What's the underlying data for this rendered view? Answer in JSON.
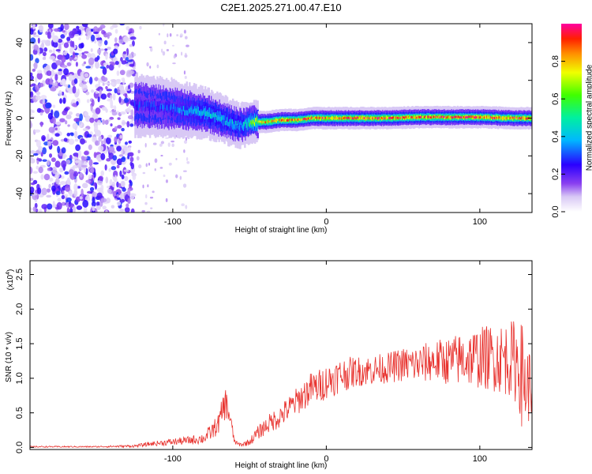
{
  "title": "C2E1.2025.271.00.47.E10",
  "chart_data": [
    {
      "type": "heatmap",
      "name": "spectrogram",
      "xlabel": "Height of straight line (km)",
      "ylabel": "Frequency (Hz)",
      "xlim": [
        -193,
        134
      ],
      "ylim": [
        -50,
        50
      ],
      "xticks": [
        -100,
        0,
        100
      ],
      "xtick_labels": [
        "-100",
        "0",
        "100"
      ],
      "yticks": [
        -40,
        -20,
        0,
        20,
        40
      ],
      "ytick_labels": [
        "-40",
        "-20",
        "0",
        "20",
        "40"
      ],
      "colorbar": {
        "label": "Normalized spectral amplitude",
        "range": [
          0,
          1
        ],
        "ticks": [
          0.0,
          0.2,
          0.4,
          0.6,
          0.8
        ],
        "tick_labels": [
          "0.0",
          "0.2",
          "0.4",
          "0.6",
          "0.8"
        ]
      },
      "ridge": {
        "x": [
          -125,
          -110,
          -100,
          -90,
          -80,
          -70,
          -60,
          -55,
          -50,
          -40,
          -30,
          -20,
          -10,
          0,
          20,
          40,
          60,
          80,
          100,
          120,
          134
        ],
        "frequency": [
          7,
          6,
          5,
          4,
          3,
          0,
          -3,
          -4,
          -2,
          -2,
          -1,
          -1,
          0,
          0,
          0,
          0,
          0.5,
          0.5,
          0.5,
          0,
          0
        ],
        "amplitude": [
          0.3,
          0.3,
          0.35,
          0.4,
          0.45,
          0.45,
          0.45,
          0.45,
          0.6,
          0.85,
          0.9,
          0.9,
          0.95,
          0.9,
          0.95,
          0.95,
          0.9,
          0.95,
          0.95,
          0.95,
          0.9
        ]
      },
      "noise_region": [
        -193,
        -125
      ]
    },
    {
      "type": "line",
      "name": "snr",
      "xlabel": "Height of straight line (km)",
      "ylabel": "SNR (10 * v/v)",
      "y_multiplier": "(x10",
      "y_multiplier_exp": "4",
      "y_multiplier_close": ")",
      "xlim": [
        -193,
        134
      ],
      "ylim": [
        -0.03,
        2.7
      ],
      "xticks": [
        -100,
        0,
        100
      ],
      "xtick_labels": [
        "-100",
        "0",
        "100"
      ],
      "yticks": [
        0.0,
        0.5,
        1.0,
        1.5,
        2.0,
        2.5
      ],
      "ytick_labels": [
        "0.0",
        "0.5",
        "1.0",
        "1.5",
        "2.0",
        "2.5"
      ],
      "series": [
        {
          "name": "SNR",
          "color": "#e8322e",
          "x": [
            -193,
            -150,
            -125,
            -115,
            -100,
            -90,
            -80,
            -75,
            -70,
            -68,
            -66,
            -64,
            -62,
            -60,
            -58,
            -55,
            -50,
            -45,
            -40,
            -35,
            -30,
            -25,
            -20,
            -15,
            -10,
            -5,
            0,
            5,
            10,
            20,
            30,
            40,
            50,
            60,
            70,
            80,
            90,
            100,
            110,
            120,
            125,
            128,
            130,
            134
          ],
          "y": [
            0.01,
            0.01,
            0.02,
            0.05,
            0.08,
            0.1,
            0.13,
            0.22,
            0.35,
            0.5,
            0.65,
            0.55,
            0.35,
            0.1,
            0.05,
            0.04,
            0.08,
            0.2,
            0.3,
            0.38,
            0.45,
            0.55,
            0.65,
            0.75,
            0.85,
            0.88,
            0.95,
            1.0,
            1.05,
            1.1,
            1.12,
            1.15,
            1.2,
            1.2,
            1.25,
            1.25,
            1.28,
            1.3,
            1.3,
            1.28,
            1.25,
            1.0,
            0.9,
            0.9
          ],
          "spread": [
            0.01,
            0.01,
            0.02,
            0.03,
            0.05,
            0.06,
            0.08,
            0.12,
            0.15,
            0.2,
            0.25,
            0.2,
            0.12,
            0.05,
            0.03,
            0.03,
            0.05,
            0.1,
            0.12,
            0.15,
            0.17,
            0.18,
            0.2,
            0.22,
            0.24,
            0.25,
            0.25,
            0.25,
            0.25,
            0.22,
            0.22,
            0.22,
            0.25,
            0.28,
            0.3,
            0.35,
            0.4,
            0.45,
            0.5,
            0.55,
            0.65,
            0.8,
            0.6,
            0.5
          ]
        }
      ]
    }
  ]
}
